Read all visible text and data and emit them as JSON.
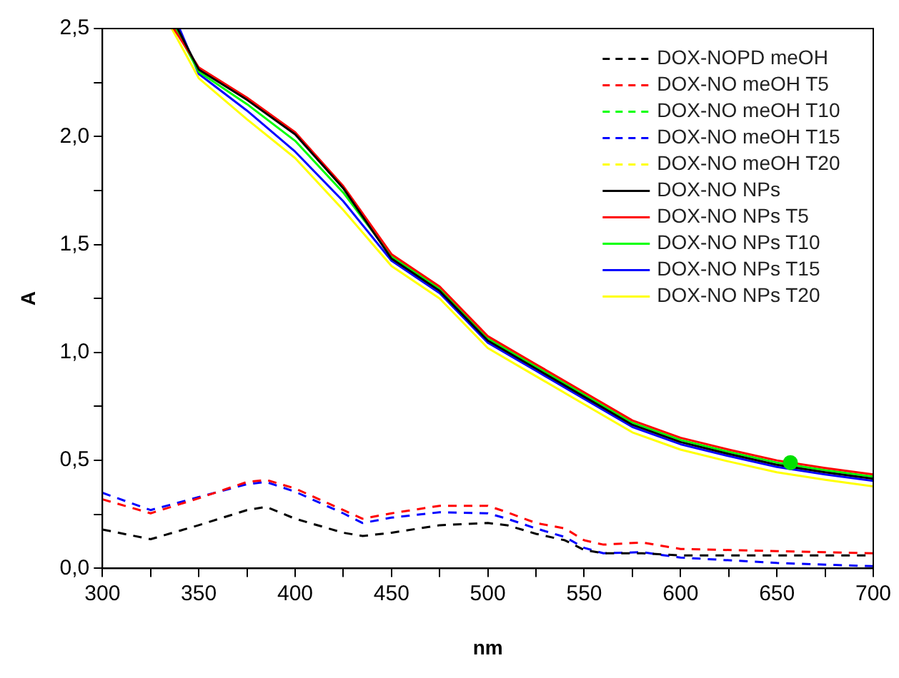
{
  "chart_data": {
    "type": "line",
    "xlabel": "nm",
    "ylabel": "A",
    "xlim": [
      300,
      700
    ],
    "ylim": [
      0,
      2.5
    ],
    "xticks": [
      300,
      {
        "value": 325,
        "label": null
      },
      350,
      {
        "value": 375,
        "label": null
      },
      400,
      {
        "value": 425,
        "label": null
      },
      450,
      {
        "value": 475,
        "label": null
      },
      500,
      {
        "value": 525,
        "label": null
      },
      550,
      {
        "value": 575,
        "label": null
      },
      600,
      {
        "value": 625,
        "label": null
      },
      650,
      {
        "value": 675,
        "label": null
      },
      700
    ],
    "yticks": [
      {
        "value": 0,
        "label": "0,0"
      },
      {
        "value": 0.25,
        "label": null
      },
      {
        "value": 0.5,
        "label": "0,5"
      },
      {
        "value": 0.75,
        "label": null
      },
      {
        "value": 1,
        "label": "1,0"
      },
      {
        "value": 1.25,
        "label": null
      },
      {
        "value": 1.5,
        "label": "1,5"
      },
      {
        "value": 1.75,
        "label": null
      },
      {
        "value": 2,
        "label": "2,0"
      },
      {
        "value": 2.25,
        "label": null
      },
      {
        "value": 2.5,
        "label": "2,5"
      }
    ],
    "grid": false,
    "legend": "top right",
    "marker": "none",
    "series": [
      {
        "name": "DOX-NOPD meOH",
        "color": "#000000",
        "line_style": "dashed",
        "x": [
          300,
          325,
          350,
          375,
          385,
          400,
          425,
          435,
          450,
          475,
          500,
          510,
          525,
          540,
          550,
          560,
          580,
          600,
          650,
          700
        ],
        "values": [
          0.18,
          0.135,
          0.2,
          0.27,
          0.285,
          0.23,
          0.165,
          0.15,
          0.165,
          0.2,
          0.21,
          0.2,
          0.16,
          0.13,
          0.085,
          0.07,
          0.07,
          0.06,
          0.06,
          0.06
        ]
      },
      {
        "name": "DOX-NO meOH T5",
        "color": "#ff0000",
        "line_style": "dashed",
        "x": [
          300,
          325,
          350,
          375,
          385,
          400,
          425,
          435,
          450,
          475,
          500,
          510,
          525,
          540,
          550,
          560,
          580,
          600,
          650,
          700
        ],
        "values": [
          0.32,
          0.255,
          0.325,
          0.4,
          0.41,
          0.37,
          0.27,
          0.23,
          0.255,
          0.29,
          0.29,
          0.26,
          0.21,
          0.185,
          0.13,
          0.11,
          0.12,
          0.09,
          0.08,
          0.07
        ]
      },
      {
        "name": "DOX-NO meOH T10",
        "color": "#00ff00",
        "line_style": "dashed"
      },
      {
        "name": "DOX-NO meOH T15",
        "color": "#0000ff",
        "line_style": "dashed",
        "x": [
          300,
          325,
          350,
          375,
          385,
          400,
          425,
          435,
          450,
          475,
          500,
          510,
          525,
          540,
          550,
          560,
          580,
          600,
          650,
          700
        ],
        "values": [
          0.35,
          0.27,
          0.33,
          0.39,
          0.4,
          0.355,
          0.255,
          0.21,
          0.235,
          0.26,
          0.255,
          0.23,
          0.185,
          0.145,
          0.095,
          0.07,
          0.075,
          0.05,
          0.025,
          0.01
        ]
      },
      {
        "name": "DOX-NO meOH T20",
        "color": "#ffff00",
        "line_style": "dashed"
      },
      {
        "name": "DOX-NO NPs",
        "color": "#000000",
        "line_style": "solid",
        "x": [
          339,
          350,
          375,
          400,
          425,
          450,
          475,
          500,
          525,
          550,
          575,
          600,
          625,
          650,
          675,
          700
        ],
        "values": [
          2.5,
          2.31,
          2.17,
          2.01,
          1.76,
          1.435,
          1.285,
          1.055,
          0.925,
          0.795,
          0.665,
          0.585,
          0.53,
          0.48,
          0.445,
          0.415
        ]
      },
      {
        "name": "DOX-NO NPs T5",
        "color": "#ff0000",
        "line_style": "solid",
        "x": [
          337,
          350,
          375,
          400,
          425,
          450,
          475,
          500,
          525,
          550,
          575,
          600,
          625,
          650,
          675,
          700
        ],
        "values": [
          2.5,
          2.32,
          2.18,
          2.02,
          1.77,
          1.455,
          1.305,
          1.075,
          0.945,
          0.815,
          0.685,
          0.605,
          0.55,
          0.5,
          0.465,
          0.435
        ]
      },
      {
        "name": "DOX-NO NPs T10",
        "color": "#00ff00",
        "line_style": "solid",
        "x": [
          338,
          350,
          375,
          400,
          425,
          450,
          475,
          500,
          525,
          550,
          575,
          600,
          625,
          650,
          675,
          700
        ],
        "values": [
          2.5,
          2.3,
          2.15,
          1.98,
          1.74,
          1.445,
          1.295,
          1.065,
          0.935,
          0.805,
          0.675,
          0.595,
          0.54,
          0.49,
          0.455,
          0.425
        ]
      },
      {
        "name": "DOX-NO NPs T15",
        "color": "#0000ff",
        "line_style": "solid",
        "x": [
          340,
          350,
          375,
          400,
          425,
          450,
          475,
          500,
          525,
          550,
          575,
          600,
          625,
          650,
          675,
          700
        ],
        "values": [
          2.5,
          2.29,
          2.12,
          1.93,
          1.7,
          1.425,
          1.275,
          1.045,
          0.915,
          0.785,
          0.655,
          0.575,
          0.52,
          0.47,
          0.435,
          0.405
        ]
      },
      {
        "name": "DOX-NO NPs T20",
        "color": "#ffff00",
        "line_style": "solid",
        "x": [
          336,
          350,
          375,
          400,
          425,
          450,
          475,
          500,
          525,
          550,
          575,
          600,
          625,
          650,
          675,
          700
        ],
        "values": [
          2.5,
          2.27,
          2.08,
          1.9,
          1.66,
          1.4,
          1.25,
          1.02,
          0.89,
          0.76,
          0.63,
          0.55,
          0.495,
          0.445,
          0.41,
          0.38
        ]
      },
      {
        "type": "scatter",
        "color": "#00e000",
        "marker": "circle",
        "x": [
          657
        ],
        "values": [
          0.49
        ]
      }
    ]
  }
}
